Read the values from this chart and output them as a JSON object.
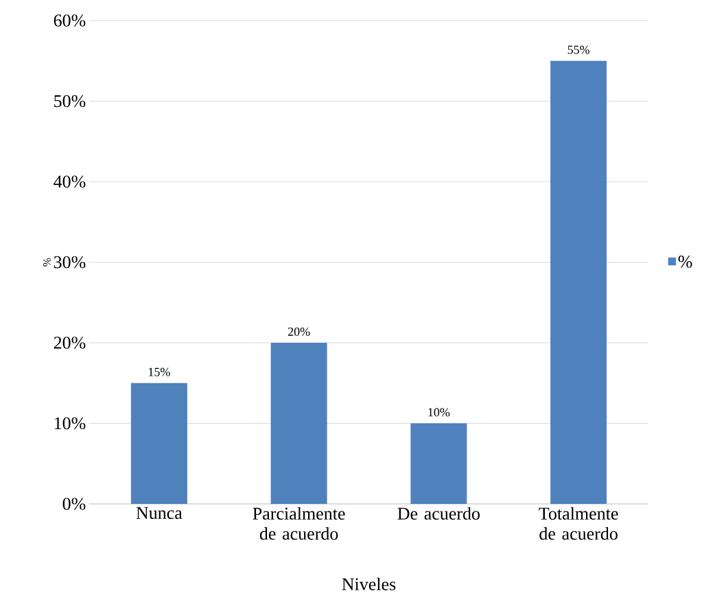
{
  "chart_data": {
    "type": "bar",
    "xlabel": "Niveles",
    "ylabel": "%",
    "categories": [
      "Nunca",
      "Parcialmente de acuerdo",
      "De acuerdo",
      "Totalmente de acuerdo"
    ],
    "series": [
      {
        "name": "%",
        "color": "#4f81bd",
        "values": [
          15,
          20,
          10,
          55
        ],
        "value_labels": [
          "15%",
          "20%",
          "10%",
          "55%"
        ]
      }
    ],
    "ylim": [
      0,
      60
    ],
    "yticks": [
      {
        "value": 0,
        "label": "0%"
      },
      {
        "value": 10,
        "label": "10%"
      },
      {
        "value": 20,
        "label": "20%"
      },
      {
        "value": 30,
        "label": "30%"
      },
      {
        "value": 40,
        "label": "40%"
      },
      {
        "value": 50,
        "label": "50%"
      },
      {
        "value": 60,
        "label": "60%"
      }
    ],
    "grid": "y",
    "legend": "right"
  }
}
